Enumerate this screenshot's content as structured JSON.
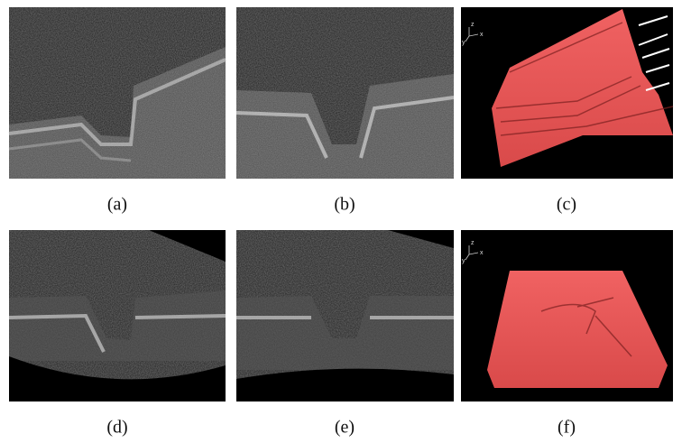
{
  "panels": [
    {
      "label": "(a)"
    },
    {
      "label": "(b)"
    },
    {
      "label": "(c)",
      "axes": [
        "z",
        "y",
        "x"
      ]
    },
    {
      "label": "(d)"
    },
    {
      "label": "(e)"
    },
    {
      "label": "(f)",
      "axes": [
        "z",
        "y",
        "x"
      ]
    }
  ]
}
